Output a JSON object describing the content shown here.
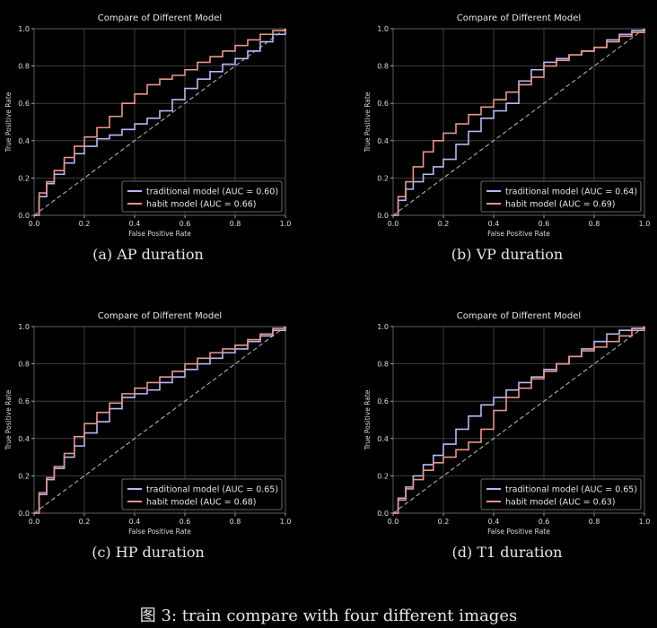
{
  "figure_caption": "图 3: train compare with four different images",
  "chart_data": [
    {
      "type": "line",
      "caption": "(a) AP duration",
      "title": "Compare of Different Model",
      "xlabel": "False Positive Rate",
      "ylabel": "True Positive Rate",
      "xlim": [
        0,
        1
      ],
      "ylim": [
        0,
        1
      ],
      "xticks": [
        "0.0",
        "0.2",
        "0.4",
        "0.6",
        "0.8",
        "1.0"
      ],
      "yticks": [
        "0.0",
        "0.2",
        "0.4",
        "0.6",
        "0.8",
        "1.0"
      ],
      "grid": true,
      "legend_position": "lower-right",
      "diagonal": true,
      "series": [
        {
          "name": "traditional model (AUC = 0.60)",
          "color": "#b8b8f5",
          "x": [
            0,
            0.02,
            0.05,
            0.08,
            0.12,
            0.16,
            0.2,
            0.25,
            0.3,
            0.35,
            0.4,
            0.45,
            0.5,
            0.55,
            0.6,
            0.65,
            0.7,
            0.75,
            0.8,
            0.85,
            0.9,
            0.95,
            1.0
          ],
          "y": [
            0,
            0.1,
            0.17,
            0.22,
            0.28,
            0.33,
            0.37,
            0.41,
            0.43,
            0.46,
            0.49,
            0.52,
            0.56,
            0.62,
            0.68,
            0.73,
            0.77,
            0.81,
            0.84,
            0.88,
            0.93,
            0.97,
            1.0
          ]
        },
        {
          "name": "habit model (AUC = 0.66)",
          "color": "#e8968c",
          "x": [
            0,
            0.02,
            0.05,
            0.08,
            0.12,
            0.16,
            0.2,
            0.25,
            0.3,
            0.35,
            0.4,
            0.45,
            0.5,
            0.55,
            0.6,
            0.65,
            0.7,
            0.75,
            0.8,
            0.85,
            0.9,
            0.95,
            1.0
          ],
          "y": [
            0,
            0.12,
            0.18,
            0.24,
            0.31,
            0.37,
            0.42,
            0.47,
            0.53,
            0.6,
            0.65,
            0.7,
            0.73,
            0.75,
            0.78,
            0.82,
            0.85,
            0.88,
            0.91,
            0.94,
            0.97,
            0.99,
            1.0
          ]
        }
      ]
    },
    {
      "type": "line",
      "caption": "(b) VP duration",
      "title": "Compare of Different Model",
      "xlabel": "False Positive Rate",
      "ylabel": "True Positive Rate",
      "xlim": [
        0,
        1
      ],
      "ylim": [
        0,
        1
      ],
      "xticks": [
        "0.0",
        "0.2",
        "0.4",
        "0.6",
        "0.8",
        "1.0"
      ],
      "yticks": [
        "0.0",
        "0.2",
        "0.4",
        "0.6",
        "0.8",
        "1.0"
      ],
      "grid": true,
      "legend_position": "lower-right",
      "diagonal": true,
      "series": [
        {
          "name": "traditional model (AUC = 0.64)",
          "color": "#b8b8f5",
          "x": [
            0,
            0.02,
            0.05,
            0.08,
            0.12,
            0.16,
            0.2,
            0.25,
            0.3,
            0.35,
            0.4,
            0.45,
            0.5,
            0.55,
            0.6,
            0.65,
            0.7,
            0.75,
            0.8,
            0.85,
            0.9,
            0.95,
            1.0
          ],
          "y": [
            0,
            0.08,
            0.14,
            0.18,
            0.22,
            0.26,
            0.3,
            0.38,
            0.45,
            0.52,
            0.56,
            0.6,
            0.72,
            0.78,
            0.82,
            0.84,
            0.86,
            0.88,
            0.9,
            0.94,
            0.97,
            0.99,
            1.0
          ]
        },
        {
          "name": "habit model (AUC = 0.69)",
          "color": "#e8968c",
          "x": [
            0,
            0.02,
            0.05,
            0.08,
            0.12,
            0.16,
            0.2,
            0.25,
            0.3,
            0.35,
            0.4,
            0.45,
            0.5,
            0.55,
            0.6,
            0.65,
            0.7,
            0.75,
            0.8,
            0.85,
            0.9,
            0.95,
            1.0
          ],
          "y": [
            0,
            0.1,
            0.18,
            0.26,
            0.34,
            0.4,
            0.44,
            0.49,
            0.54,
            0.58,
            0.62,
            0.66,
            0.7,
            0.74,
            0.8,
            0.83,
            0.86,
            0.88,
            0.9,
            0.93,
            0.96,
            0.98,
            1.0
          ]
        }
      ]
    },
    {
      "type": "line",
      "caption": "(c) HP duration",
      "title": "Compare of Different Model",
      "xlabel": "False Positive Rate",
      "ylabel": "True Positive Rate",
      "xlim": [
        0,
        1
      ],
      "ylim": [
        0,
        1
      ],
      "xticks": [
        "0.0",
        "0.2",
        "0.4",
        "0.6",
        "0.8",
        "1.0"
      ],
      "yticks": [
        "0.0",
        "0.2",
        "0.4",
        "0.6",
        "0.8",
        "1.0"
      ],
      "grid": true,
      "legend_position": "lower-right",
      "diagonal": true,
      "series": [
        {
          "name": "traditional model (AUC = 0.65)",
          "color": "#b8b8f5",
          "x": [
            0,
            0.02,
            0.05,
            0.08,
            0.12,
            0.16,
            0.2,
            0.25,
            0.3,
            0.35,
            0.4,
            0.45,
            0.5,
            0.55,
            0.6,
            0.65,
            0.7,
            0.75,
            0.8,
            0.85,
            0.9,
            0.95,
            1.0
          ],
          "y": [
            0,
            0.1,
            0.18,
            0.24,
            0.3,
            0.36,
            0.43,
            0.49,
            0.56,
            0.62,
            0.64,
            0.66,
            0.7,
            0.73,
            0.77,
            0.8,
            0.83,
            0.86,
            0.88,
            0.92,
            0.95,
            0.98,
            1.0
          ]
        },
        {
          "name": "habit model (AUC = 0.68)",
          "color": "#e8968c",
          "x": [
            0,
            0.02,
            0.05,
            0.08,
            0.12,
            0.16,
            0.2,
            0.25,
            0.3,
            0.35,
            0.4,
            0.45,
            0.5,
            0.55,
            0.6,
            0.65,
            0.7,
            0.75,
            0.8,
            0.85,
            0.9,
            0.95,
            1.0
          ],
          "y": [
            0,
            0.11,
            0.19,
            0.25,
            0.32,
            0.41,
            0.48,
            0.54,
            0.59,
            0.64,
            0.67,
            0.7,
            0.73,
            0.76,
            0.8,
            0.83,
            0.86,
            0.88,
            0.9,
            0.93,
            0.96,
            0.99,
            1.0
          ]
        }
      ]
    },
    {
      "type": "line",
      "caption": "(d) T1 duration",
      "title": "Compare of Different Model",
      "xlabel": "False Positive Rate",
      "ylabel": "True Positive Rate",
      "xlim": [
        0,
        1
      ],
      "ylim": [
        0,
        1
      ],
      "xticks": [
        "0.0",
        "0.2",
        "0.4",
        "0.6",
        "0.8",
        "1.0"
      ],
      "yticks": [
        "0.0",
        "0.2",
        "0.4",
        "0.6",
        "0.8",
        "1.0"
      ],
      "grid": true,
      "legend_position": "lower-right",
      "diagonal": true,
      "series": [
        {
          "name": "traditional model (AUC = 0.65)",
          "color": "#b8b8f5",
          "x": [
            0,
            0.02,
            0.05,
            0.08,
            0.12,
            0.16,
            0.2,
            0.25,
            0.3,
            0.35,
            0.4,
            0.45,
            0.5,
            0.55,
            0.6,
            0.65,
            0.7,
            0.75,
            0.8,
            0.85,
            0.9,
            0.95,
            1.0
          ],
          "y": [
            0,
            0.08,
            0.14,
            0.2,
            0.26,
            0.31,
            0.37,
            0.45,
            0.52,
            0.58,
            0.62,
            0.66,
            0.7,
            0.73,
            0.77,
            0.8,
            0.84,
            0.88,
            0.92,
            0.96,
            0.98,
            0.99,
            1.0
          ]
        },
        {
          "name": "habit model (AUC = 0.63)",
          "color": "#e8968c",
          "x": [
            0,
            0.02,
            0.05,
            0.08,
            0.12,
            0.16,
            0.2,
            0.25,
            0.3,
            0.35,
            0.4,
            0.45,
            0.5,
            0.55,
            0.6,
            0.65,
            0.7,
            0.75,
            0.8,
            0.85,
            0.9,
            0.95,
            1.0
          ],
          "y": [
            0,
            0.07,
            0.13,
            0.18,
            0.23,
            0.27,
            0.3,
            0.34,
            0.38,
            0.45,
            0.55,
            0.62,
            0.67,
            0.72,
            0.76,
            0.8,
            0.84,
            0.87,
            0.89,
            0.92,
            0.95,
            0.98,
            1.0
          ]
        }
      ]
    }
  ]
}
